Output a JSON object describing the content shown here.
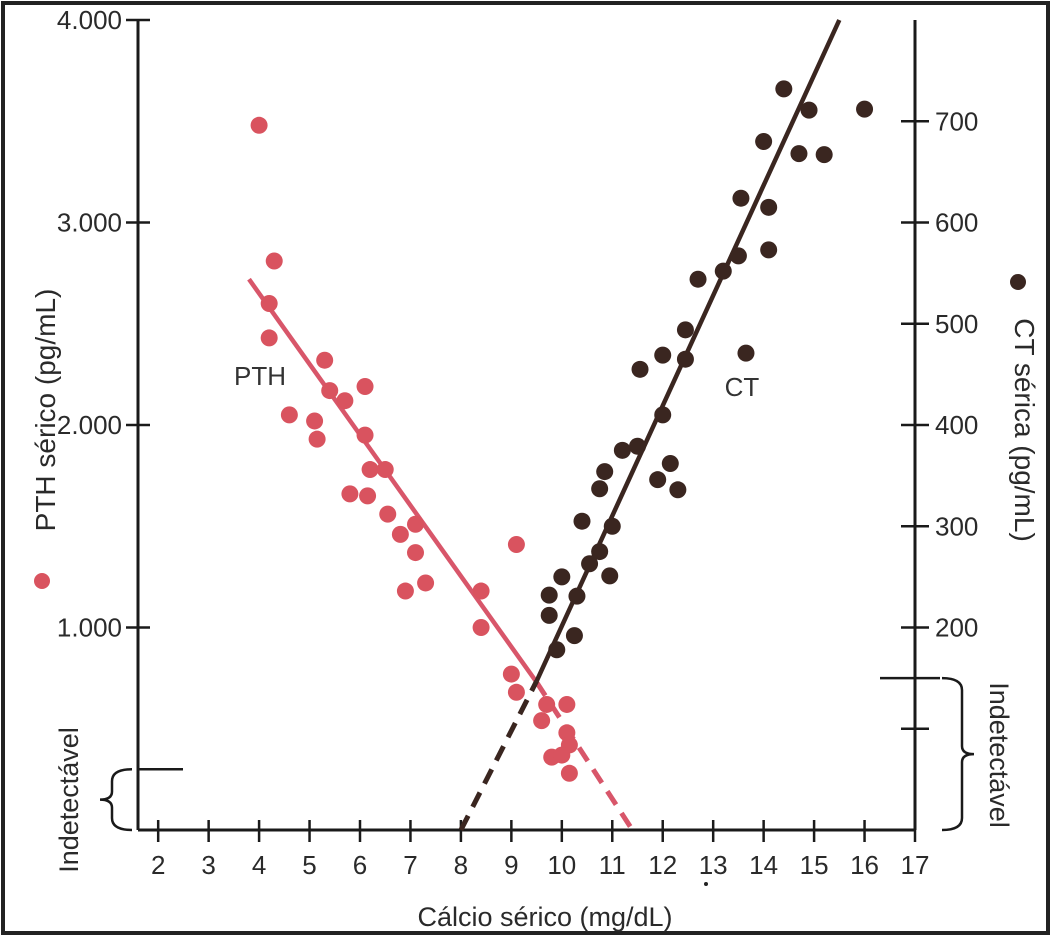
{
  "chart_data": {
    "type": "scatter",
    "title": "",
    "xlabel": "Cálcio sérico (mg/dL)",
    "ylabel_left": "PTH sérico (pg/mL)",
    "ylabel_right": "CT sérica (pg/mL)",
    "xlim": [
      1.6,
      17
    ],
    "ylim_left": [
      0,
      4000
    ],
    "ylim_right": [
      0,
      800
    ],
    "x_ticks": [
      "2",
      "3",
      "4",
      "5",
      "6",
      "7",
      "8",
      "9",
      "10",
      "11",
      "12",
      "13",
      "14",
      "15",
      "16",
      "17"
    ],
    "y_left_ticks": [
      {
        "value": 1000,
        "label": "1.000"
      },
      {
        "value": 2000,
        "label": "2.000"
      },
      {
        "value": 3000,
        "label": "3.000"
      },
      {
        "value": 4000,
        "label": "4.000"
      }
    ],
    "y_right_ticks": [
      {
        "value": 100,
        "label": ""
      },
      {
        "value": 200,
        "label": "200"
      },
      {
        "value": 300,
        "label": "300"
      },
      {
        "value": 400,
        "label": "400"
      },
      {
        "value": 500,
        "label": "500"
      },
      {
        "value": 600,
        "label": "600"
      },
      {
        "value": 700,
        "label": "700"
      }
    ],
    "grid": false,
    "colors": {
      "pth": "#d9535f",
      "pth_line": "#d8566a",
      "ct": "#3a2620",
      "axis": "#1a1a1a"
    },
    "series": [
      {
        "name": "PTH",
        "axis": "left",
        "marker_legend_side": "left",
        "points": [
          [
            4.0,
            3480
          ],
          [
            4.2,
            2600
          ],
          [
            4.2,
            2430
          ],
          [
            4.3,
            2810
          ],
          [
            4.6,
            2050
          ],
          [
            5.1,
            2020
          ],
          [
            5.15,
            1930
          ],
          [
            5.3,
            2320
          ],
          [
            5.4,
            2170
          ],
          [
            5.7,
            2120
          ],
          [
            5.8,
            1660
          ],
          [
            6.1,
            2190
          ],
          [
            6.1,
            1950
          ],
          [
            6.15,
            1650
          ],
          [
            6.2,
            1780
          ],
          [
            6.5,
            1780
          ],
          [
            6.55,
            1560
          ],
          [
            6.8,
            1460
          ],
          [
            6.9,
            1180
          ],
          [
            7.1,
            1510
          ],
          [
            7.1,
            1370
          ],
          [
            7.3,
            1220
          ],
          [
            8.4,
            1180
          ],
          [
            8.4,
            1000
          ],
          [
            9.0,
            770
          ],
          [
            9.1,
            680
          ],
          [
            9.1,
            1410
          ],
          [
            9.6,
            540
          ],
          [
            9.7,
            620
          ],
          [
            10.1,
            620
          ],
          [
            10.1,
            480
          ],
          [
            10.15,
            420
          ],
          [
            9.8,
            360
          ],
          [
            10.0,
            370
          ],
          [
            10.15,
            280
          ]
        ],
        "fit": {
          "from": [
            3.8,
            2720
          ],
          "to": [
            9.5,
            730
          ],
          "dashed_from": [
            9.5,
            730
          ],
          "dashed_to": [
            11.4,
            0
          ]
        }
      },
      {
        "name": "CT",
        "axis": "right",
        "marker_legend_side": "right",
        "points": [
          [
            9.75,
            232
          ],
          [
            9.75,
            212
          ],
          [
            9.9,
            178
          ],
          [
            10.0,
            250
          ],
          [
            10.25,
            192
          ],
          [
            10.3,
            231
          ],
          [
            10.4,
            305
          ],
          [
            10.55,
            263
          ],
          [
            10.75,
            337
          ],
          [
            10.75,
            275
          ],
          [
            10.85,
            354
          ],
          [
            10.95,
            251
          ],
          [
            11.0,
            300
          ],
          [
            11.2,
            375
          ],
          [
            11.5,
            379
          ],
          [
            11.55,
            455
          ],
          [
            11.9,
            346
          ],
          [
            12.0,
            410
          ],
          [
            12.0,
            469
          ],
          [
            12.15,
            362
          ],
          [
            12.3,
            336
          ],
          [
            12.45,
            494
          ],
          [
            12.45,
            465
          ],
          [
            12.7,
            544
          ],
          [
            13.2,
            552
          ],
          [
            13.5,
            567
          ],
          [
            13.55,
            624
          ],
          [
            13.65,
            471
          ],
          [
            14.0,
            680
          ],
          [
            14.1,
            615
          ],
          [
            14.1,
            573
          ],
          [
            14.4,
            732
          ],
          [
            14.7,
            668
          ],
          [
            14.9,
            711
          ],
          [
            15.2,
            667
          ],
          [
            16.0,
            712
          ]
        ],
        "fit": {
          "from": [
            9.5,
            147
          ],
          "to": [
            15.5,
            800
          ],
          "dashed_from": [
            8.0,
            0
          ],
          "dashed_to": [
            9.5,
            147
          ]
        }
      }
    ],
    "annotations": [
      {
        "text": "PTH",
        "x": 4.5,
        "y_axis": "left",
        "y": 2270
      },
      {
        "text": "CT",
        "x": 13.6,
        "y_axis": "right",
        "y": 432
      }
    ],
    "undetectable": {
      "label_left": "Indetectável",
      "label_right": "Indetectável",
      "left_range": [
        0,
        300
      ],
      "right_range": [
        0,
        150
      ]
    }
  }
}
